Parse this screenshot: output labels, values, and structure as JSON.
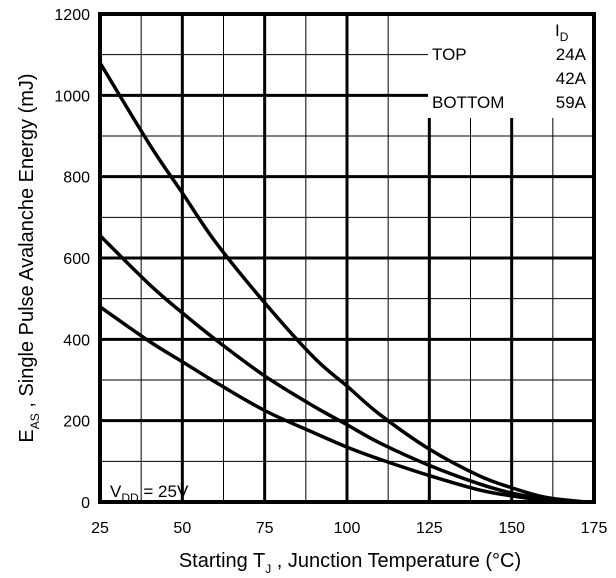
{
  "chart_data": {
    "type": "line",
    "title": "",
    "xlabel": {
      "prefix": "Starting T",
      "sub": "J",
      "suffix": " , Junction Temperature (°C)"
    },
    "ylabel": {
      "prefix": "E",
      "sub": "AS",
      "suffix": " ,   Single Pulse Avalanche Energy (mJ)"
    },
    "xlim": [
      25,
      175
    ],
    "ylim": [
      0,
      1200
    ],
    "xticks": [
      "25",
      "50",
      "75",
      "100",
      "125",
      "150",
      "175"
    ],
    "yticks": [
      "0",
      "200",
      "400",
      "600",
      "800",
      "1000",
      "1200"
    ],
    "grid": true,
    "legend": {
      "position": "top-right",
      "header_prefix": "I",
      "header_sub": "D",
      "rows": [
        {
          "label": "TOP",
          "value": "24A"
        },
        {
          "label": "",
          "value": "42A"
        },
        {
          "label": "BOTTOM",
          "value": "59A"
        }
      ]
    },
    "annotation": {
      "prefix": "V",
      "sub": "DD",
      "suffix": " = 25V",
      "position": "bottom-left"
    },
    "series": [
      {
        "id": "24A",
        "x": [
          25,
          40,
          50,
          60,
          75,
          90,
          100,
          110,
          125,
          140,
          150,
          160,
          170,
          175
        ],
        "y": [
          1080,
          880,
          760,
          640,
          490,
          355,
          285,
          215,
          130,
          65,
          35,
          12,
          2,
          0
        ]
      },
      {
        "id": "42A",
        "x": [
          25,
          40,
          50,
          60,
          75,
          90,
          100,
          110,
          125,
          140,
          150,
          160,
          170,
          175
        ],
        "y": [
          655,
          535,
          465,
          400,
          310,
          235,
          190,
          145,
          90,
          45,
          22,
          8,
          1,
          0
        ]
      },
      {
        "id": "59A",
        "x": [
          25,
          40,
          50,
          60,
          75,
          90,
          100,
          110,
          125,
          140,
          150,
          160,
          170,
          175
        ],
        "y": [
          480,
          395,
          345,
          295,
          225,
          170,
          135,
          105,
          65,
          30,
          15,
          5,
          1,
          0
        ]
      }
    ]
  }
}
